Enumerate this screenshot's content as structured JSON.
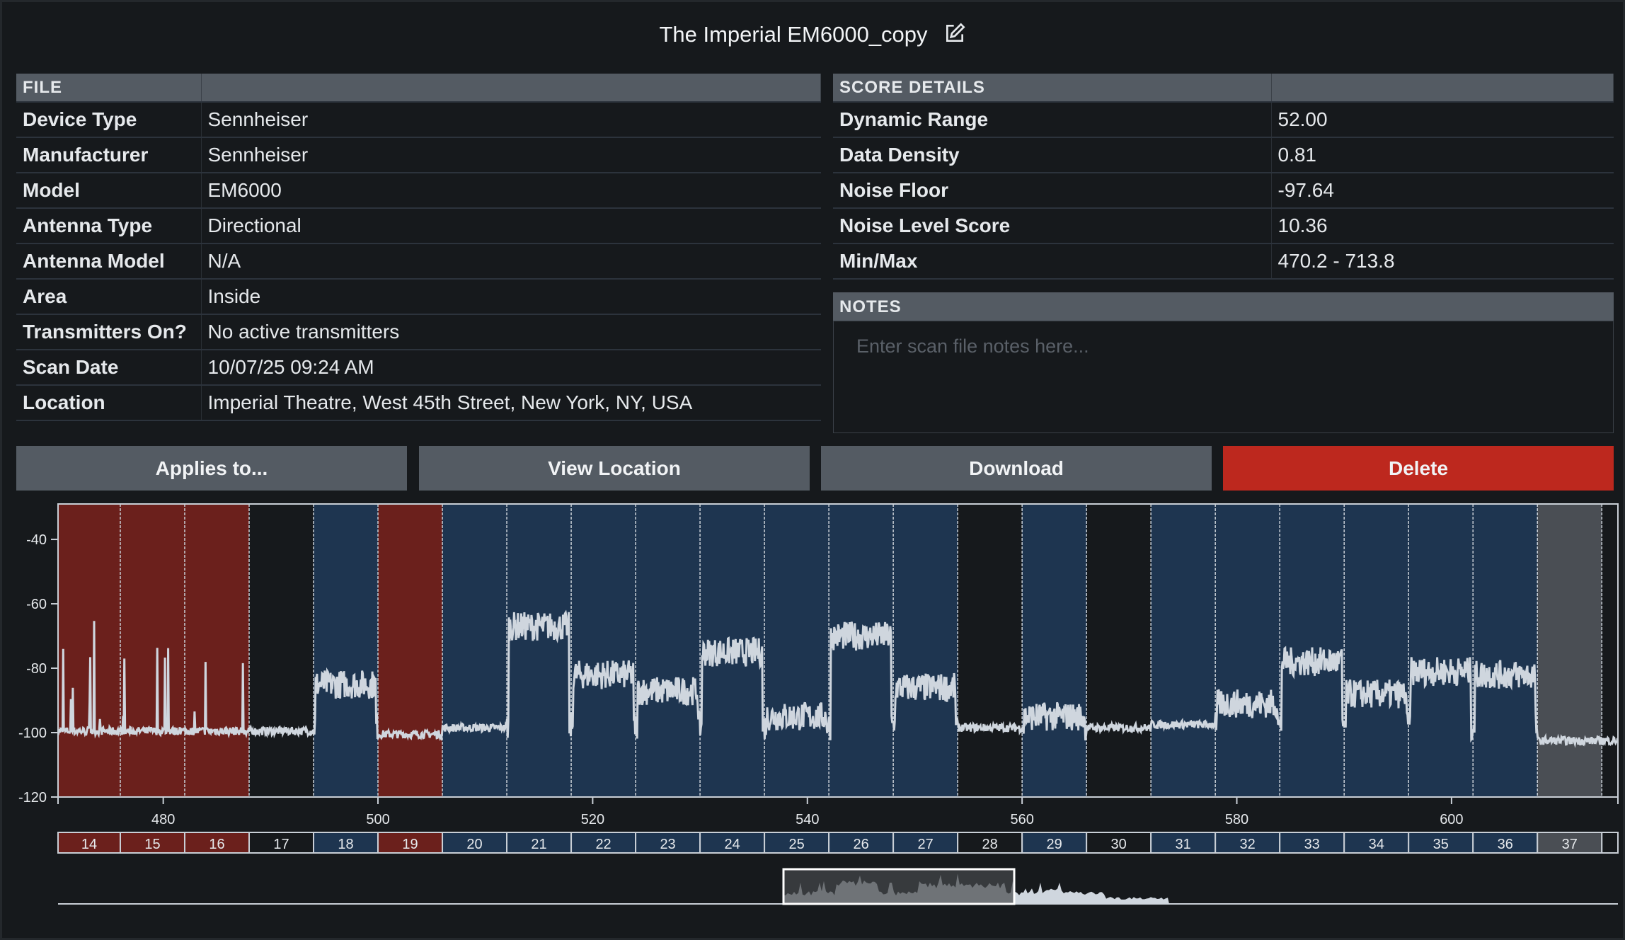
{
  "title": "The Imperial EM6000_copy",
  "file_table": {
    "header": "FILE",
    "rows": [
      [
        "Device Type",
        "Sennheiser"
      ],
      [
        "Manufacturer",
        "Sennheiser"
      ],
      [
        "Model",
        "EM6000"
      ],
      [
        "Antenna Type",
        "Directional"
      ],
      [
        "Antenna Model",
        "N/A"
      ],
      [
        "Area",
        "Inside"
      ],
      [
        "Transmitters On?",
        "No active transmitters"
      ],
      [
        "Scan Date",
        "10/07/25 09:24 AM"
      ],
      [
        "Location",
        "Imperial Theatre, West 45th Street, New York, NY, USA"
      ]
    ]
  },
  "score_table": {
    "header": "SCORE DETAILS",
    "rows": [
      [
        "Dynamic Range",
        "52.00"
      ],
      [
        "Data Density",
        "0.81"
      ],
      [
        "Noise Floor",
        "-97.64"
      ],
      [
        "Noise Level Score",
        "10.36"
      ],
      [
        "Min/Max",
        "470.2 - 713.8"
      ]
    ]
  },
  "notes": {
    "header": "NOTES",
    "placeholder": "Enter scan file notes here..."
  },
  "buttons": {
    "applies": "Applies to...",
    "view_location": "View Location",
    "download": "Download",
    "delete": "Delete"
  },
  "colors": {
    "red": "#6b201c",
    "blue": "#1e3550",
    "none": "#16191c",
    "gray": "#4a4e54",
    "trace": "#cfd6de",
    "delete": "#bd281e"
  },
  "chart_data": {
    "type": "line",
    "xlim": [
      470.2,
      615.5
    ],
    "ylim": [
      -120,
      -29
    ],
    "xticks": [
      480,
      500,
      520,
      540,
      560,
      580,
      600
    ],
    "yticks": [
      -40,
      -60,
      -80,
      -100,
      -120
    ],
    "channels": [
      {
        "ch": 14,
        "start": 470,
        "status": "red",
        "level": -100,
        "spiky": true
      },
      {
        "ch": 15,
        "start": 476,
        "status": "red",
        "level": -100,
        "spiky": true
      },
      {
        "ch": 16,
        "start": 482,
        "status": "red",
        "level": -100,
        "spiky": true
      },
      {
        "ch": 17,
        "start": 488,
        "status": "none",
        "level": -100
      },
      {
        "ch": 18,
        "start": 494,
        "status": "blue",
        "level": -85
      },
      {
        "ch": 19,
        "start": 500,
        "status": "red",
        "level": -101
      },
      {
        "ch": 20,
        "start": 506,
        "status": "blue",
        "level": -99
      },
      {
        "ch": 21,
        "start": 512,
        "status": "blue",
        "level": -67
      },
      {
        "ch": 22,
        "start": 518,
        "status": "blue",
        "level": -82
      },
      {
        "ch": 23,
        "start": 524,
        "status": "blue",
        "level": -87
      },
      {
        "ch": 24,
        "start": 530,
        "status": "blue",
        "level": -75
      },
      {
        "ch": 25,
        "start": 536,
        "status": "blue",
        "level": -95
      },
      {
        "ch": 26,
        "start": 542,
        "status": "blue",
        "level": -70
      },
      {
        "ch": 27,
        "start": 548,
        "status": "blue",
        "level": -86
      },
      {
        "ch": 28,
        "start": 554,
        "status": "none",
        "level": -99
      },
      {
        "ch": 29,
        "start": 560,
        "status": "blue",
        "level": -95
      },
      {
        "ch": 30,
        "start": 566,
        "status": "none",
        "level": -99
      },
      {
        "ch": 31,
        "start": 572,
        "status": "blue",
        "level": -98
      },
      {
        "ch": 32,
        "start": 578,
        "status": "blue",
        "level": -91
      },
      {
        "ch": 33,
        "start": 584,
        "status": "blue",
        "level": -78
      },
      {
        "ch": 34,
        "start": 590,
        "status": "blue",
        "level": -88
      },
      {
        "ch": 35,
        "start": 596,
        "status": "blue",
        "level": -81
      },
      {
        "ch": 36,
        "start": 602,
        "status": "blue",
        "level": -82
      },
      {
        "ch": 37,
        "start": 608,
        "status": "gray",
        "level": -103
      },
      {
        "ch": "",
        "start": 614,
        "status": "none",
        "level": -103
      }
    ]
  }
}
